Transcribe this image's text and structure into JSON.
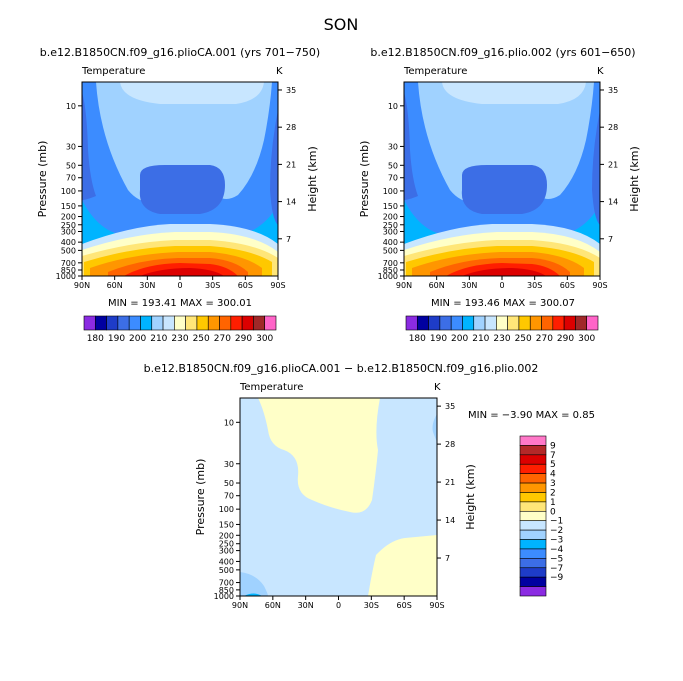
{
  "figure_title": "SON",
  "chart_data": [
    {
      "type": "heatmap",
      "title": "b.e12.B1850CN.f09_g16.plioCA.001 (yrs 701−750)",
      "left_label": "Temperature",
      "right_label": "K",
      "ylabel": "Pressure (mb)",
      "ylabel_right": "Height (km)",
      "x_ticks": [
        "90N",
        "60N",
        "30N",
        "0",
        "30S",
        "60S",
        "90S"
      ],
      "x_values": [
        90,
        60,
        30,
        0,
        -30,
        -60,
        -90
      ],
      "pressure_ticks": [
        "10",
        "30",
        "50",
        "70",
        "100",
        "150",
        "200",
        "250",
        "300",
        "400",
        "500",
        "700",
        "850",
        "1000"
      ],
      "pressure_values": [
        10,
        30,
        50,
        70,
        100,
        150,
        200,
        250,
        300,
        400,
        500,
        700,
        850,
        1000
      ],
      "height_ticks": [
        "35",
        "28",
        "21",
        "14",
        "7"
      ],
      "height_values": [
        35,
        28,
        21,
        14,
        7
      ],
      "stats": "MIN = 193.41   MAX = 300.01",
      "min": 193.41,
      "max": 300.01
    },
    {
      "type": "heatmap",
      "title": "b.e12.B1850CN.f09_g16.plio.002 (yrs 601−650)",
      "left_label": "Temperature",
      "right_label": "K",
      "ylabel": "Pressure (mb)",
      "ylabel_right": "Height (km)",
      "x_ticks": [
        "90N",
        "60N",
        "30N",
        "0",
        "30S",
        "60S",
        "90S"
      ],
      "x_values": [
        90,
        60,
        30,
        0,
        -30,
        -60,
        -90
      ],
      "pressure_ticks": [
        "10",
        "30",
        "50",
        "70",
        "100",
        "150",
        "200",
        "250",
        "300",
        "400",
        "500",
        "700",
        "850",
        "1000"
      ],
      "pressure_values": [
        10,
        30,
        50,
        70,
        100,
        150,
        200,
        250,
        300,
        400,
        500,
        700,
        850,
        1000
      ],
      "height_ticks": [
        "35",
        "28",
        "21",
        "14",
        "7"
      ],
      "height_values": [
        35,
        28,
        21,
        14,
        7
      ],
      "stats": "MIN = 193.46   MAX = 300.07",
      "min": 193.46,
      "max": 300.07
    },
    {
      "type": "heatmap",
      "title": "b.e12.B1850CN.f09_g16.plioCA.001 − b.e12.B1850CN.f09_g16.plio.002",
      "left_label": "Temperature",
      "right_label": "K",
      "ylabel": "Pressure (mb)",
      "ylabel_right": "Height (km)",
      "x_ticks": [
        "90N",
        "60N",
        "30N",
        "0",
        "30S",
        "60S",
        "90S"
      ],
      "x_values": [
        90,
        60,
        30,
        0,
        -30,
        -60,
        -90
      ],
      "pressure_ticks": [
        "10",
        "30",
        "50",
        "70",
        "100",
        "150",
        "200",
        "250",
        "300",
        "400",
        "500",
        "700",
        "850",
        "1000"
      ],
      "pressure_values": [
        10,
        30,
        50,
        70,
        100,
        150,
        200,
        250,
        300,
        400,
        500,
        700,
        850,
        1000
      ],
      "height_ticks": [
        "35",
        "28",
        "21",
        "14",
        "7"
      ],
      "height_values": [
        35,
        28,
        21,
        14,
        7
      ],
      "stats": "MIN =  −3.90   MAX =   0.85",
      "min": -3.9,
      "max": 0.85
    }
  ],
  "abs_colorbar": {
    "labels": [
      "180",
      "190",
      "200",
      "210",
      "230",
      "250",
      "270",
      "290",
      "300"
    ],
    "colors": [
      "#8B2BE2",
      "#0000A0",
      "#1E3CC8",
      "#3C6EE6",
      "#3C8CFF",
      "#00B4FF",
      "#A0D2FF",
      "#C8E6FF",
      "#FFFFC8",
      "#FFE678",
      "#FFC800",
      "#FF9600",
      "#FF6400",
      "#FF1E00",
      "#DC0000",
      "#A02828",
      "#FF64C8"
    ]
  },
  "diff_colorbar": {
    "labels": [
      "9",
      "7",
      "5",
      "4",
      "3",
      "2",
      "1",
      "0",
      "−1",
      "−2",
      "−3",
      "−4",
      "−5",
      "−7",
      "−9"
    ],
    "colors": [
      "#FF78C8",
      "#B42828",
      "#DC0000",
      "#FF1E00",
      "#FF6400",
      "#FF9600",
      "#FFC800",
      "#FFE678",
      "#FFFFC8",
      "#C8E6FF",
      "#A0D2FF",
      "#00B4FF",
      "#3C8CFF",
      "#3C6EE6",
      "#1E3CC8",
      "#0000A0",
      "#8B2BE2"
    ]
  }
}
